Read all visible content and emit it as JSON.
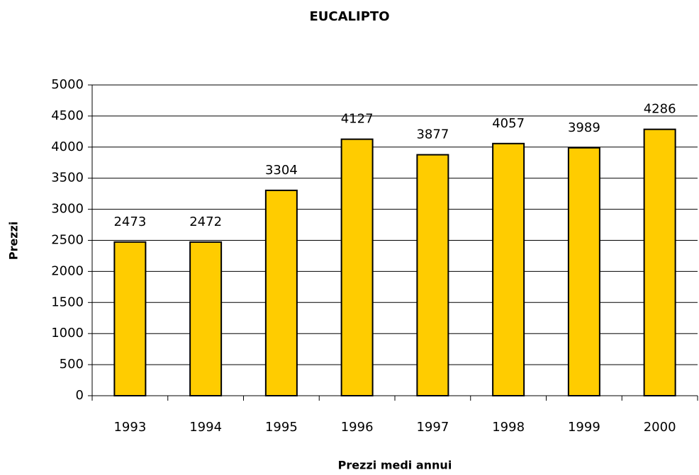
{
  "chart_data": {
    "type": "bar",
    "title": "EUCALIPTO",
    "x_label": "Prezzi medi annui",
    "y_label": "Prezzi",
    "categories": [
      "1993",
      "1994",
      "1995",
      "1996",
      "1997",
      "1998",
      "1999",
      "2000"
    ],
    "values": [
      2473,
      2472,
      3304,
      4127,
      3877,
      4057,
      3989,
      4286
    ],
    "color": "#ffcc00",
    "ylim": [
      0,
      5000
    ],
    "yticks": [
      0,
      500,
      1000,
      1500,
      2000,
      2500,
      3000,
      3500,
      4000,
      4500,
      5000
    ],
    "grid": true
  }
}
